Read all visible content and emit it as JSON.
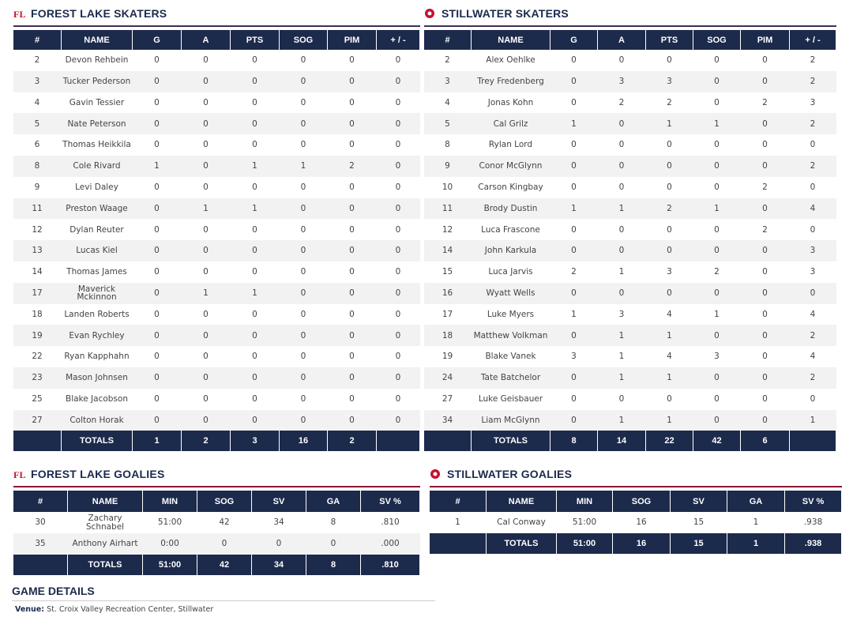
{
  "skaters": [
    {
      "title": "FOREST LAKE SKATERS",
      "columns": [
        "#",
        "NAME",
        "G",
        "A",
        "PTS",
        "SOG",
        "PIM",
        "+ / -"
      ],
      "rows": [
        [
          "2",
          "Devon Rehbein",
          "0",
          "0",
          "0",
          "0",
          "0",
          "0"
        ],
        [
          "3",
          "Tucker Pederson",
          "0",
          "0",
          "0",
          "0",
          "0",
          "0"
        ],
        [
          "4",
          "Gavin Tessier",
          "0",
          "0",
          "0",
          "0",
          "0",
          "0"
        ],
        [
          "5",
          "Nate Peterson",
          "0",
          "0",
          "0",
          "0",
          "0",
          "0"
        ],
        [
          "6",
          "Thomas Heikkila",
          "0",
          "0",
          "0",
          "0",
          "0",
          "0"
        ],
        [
          "8",
          "Cole Rivard",
          "1",
          "0",
          "1",
          "1",
          "2",
          "0"
        ],
        [
          "9",
          "Levi Daley",
          "0",
          "0",
          "0",
          "0",
          "0",
          "0"
        ],
        [
          "11",
          "Preston Waage",
          "0",
          "1",
          "1",
          "0",
          "0",
          "0"
        ],
        [
          "12",
          "Dylan Reuter",
          "0",
          "0",
          "0",
          "0",
          "0",
          "0"
        ],
        [
          "13",
          "Lucas Kiel",
          "0",
          "0",
          "0",
          "0",
          "0",
          "0"
        ],
        [
          "14",
          "Thomas James",
          "0",
          "0",
          "0",
          "0",
          "0",
          "0"
        ],
        [
          "17",
          "Maverick Mckinnon",
          "0",
          "1",
          "1",
          "0",
          "0",
          "0"
        ],
        [
          "18",
          "Landen Roberts",
          "0",
          "0",
          "0",
          "0",
          "0",
          "0"
        ],
        [
          "19",
          "Evan Rychley",
          "0",
          "0",
          "0",
          "0",
          "0",
          "0"
        ],
        [
          "22",
          "Ryan Kapphahn",
          "0",
          "0",
          "0",
          "0",
          "0",
          "0"
        ],
        [
          "23",
          "Mason Johnsen",
          "0",
          "0",
          "0",
          "0",
          "0",
          "0"
        ],
        [
          "25",
          "Blake Jacobson",
          "0",
          "0",
          "0",
          "0",
          "0",
          "0"
        ],
        [
          "27",
          "Colton Horak",
          "0",
          "0",
          "0",
          "0",
          "0",
          "0"
        ]
      ],
      "totals": {
        "label": "TOTALS",
        "values": [
          "1",
          "2",
          "3",
          "16",
          "2"
        ]
      }
    },
    {
      "title": "STILLWATER SKATERS",
      "columns": [
        "#",
        "NAME",
        "G",
        "A",
        "PTS",
        "SOG",
        "PIM",
        "+ / -"
      ],
      "rows": [
        [
          "2",
          "Alex Oehlke",
          "0",
          "0",
          "0",
          "0",
          "0",
          "2"
        ],
        [
          "3",
          "Trey Fredenberg",
          "0",
          "3",
          "3",
          "0",
          "0",
          "2"
        ],
        [
          "4",
          "Jonas Kohn",
          "0",
          "2",
          "2",
          "0",
          "2",
          "3"
        ],
        [
          "5",
          "Cal Grilz",
          "1",
          "0",
          "1",
          "1",
          "0",
          "2"
        ],
        [
          "8",
          "Rylan Lord",
          "0",
          "0",
          "0",
          "0",
          "0",
          "0"
        ],
        [
          "9",
          "Conor McGlynn",
          "0",
          "0",
          "0",
          "0",
          "0",
          "2"
        ],
        [
          "10",
          "Carson Kingbay",
          "0",
          "0",
          "0",
          "0",
          "2",
          "0"
        ],
        [
          "11",
          "Brody Dustin",
          "1",
          "1",
          "2",
          "1",
          "0",
          "4"
        ],
        [
          "12",
          "Luca Frascone",
          "0",
          "0",
          "0",
          "0",
          "2",
          "0"
        ],
        [
          "14",
          "John Karkula",
          "0",
          "0",
          "0",
          "0",
          "0",
          "3"
        ],
        [
          "15",
          "Luca Jarvis",
          "2",
          "1",
          "3",
          "2",
          "0",
          "3"
        ],
        [
          "16",
          "Wyatt Wells",
          "0",
          "0",
          "0",
          "0",
          "0",
          "0"
        ],
        [
          "17",
          "Luke Myers",
          "1",
          "3",
          "4",
          "1",
          "0",
          "4"
        ],
        [
          "18",
          "Matthew Volkman",
          "0",
          "1",
          "1",
          "0",
          "0",
          "2"
        ],
        [
          "19",
          "Blake Vanek",
          "3",
          "1",
          "4",
          "3",
          "0",
          "4"
        ],
        [
          "24",
          "Tate Batchelor",
          "0",
          "1",
          "1",
          "0",
          "0",
          "2"
        ],
        [
          "27",
          "Luke Geisbauer",
          "0",
          "0",
          "0",
          "0",
          "0",
          "0"
        ],
        [
          "34",
          "Liam McGlynn",
          "0",
          "1",
          "1",
          "0",
          "0",
          "1"
        ]
      ],
      "totals": {
        "label": "TOTALS",
        "values": [
          "8",
          "14",
          "22",
          "42",
          "6"
        ]
      }
    }
  ],
  "goalies": [
    {
      "title": "FOREST LAKE GOALIES",
      "columns": [
        "#",
        "NAME",
        "MIN",
        "SOG",
        "SV",
        "GA",
        "SV %"
      ],
      "rows": [
        [
          "30",
          "Zachary Schnabel",
          "51:00",
          "42",
          "34",
          "8",
          ".810"
        ],
        [
          "35",
          "Anthony Airhart",
          "0:00",
          "0",
          "0",
          "0",
          ".000"
        ]
      ],
      "totals": {
        "label": "TOTALS",
        "values": [
          "51:00",
          "42",
          "34",
          "8",
          ".810"
        ]
      }
    },
    {
      "title": "STILLWATER GOALIES",
      "columns": [
        "#",
        "NAME",
        "MIN",
        "SOG",
        "SV",
        "GA",
        "SV %"
      ],
      "rows": [
        [
          "1",
          "Cal Conway",
          "51:00",
          "16",
          "15",
          "1",
          ".938"
        ]
      ],
      "totals": {
        "label": "TOTALS",
        "values": [
          "51:00",
          "16",
          "15",
          "1",
          ".938"
        ]
      }
    }
  ],
  "game_details": {
    "title": "GAME DETAILS",
    "venue_label": "Venue:",
    "venue": "St. Croix Valley Recreation Center, Stillwater"
  }
}
